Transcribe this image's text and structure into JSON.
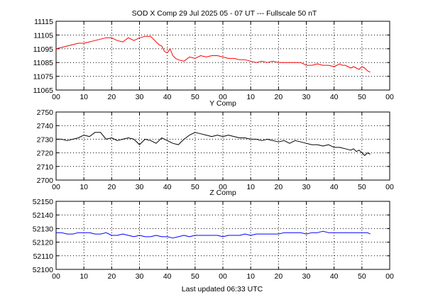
{
  "chart_data": {
    "type": "line",
    "title": "SOD X Comp   29 Jul 2025     05 - 07 UT ---  Fullscale  50 nT",
    "footer": "Last updated  06:33 UTC",
    "x_tick_labels": [
      "00",
      "10",
      "20",
      "30",
      "40",
      "50",
      "00",
      "10",
      "20",
      "30",
      "40",
      "50",
      "00"
    ],
    "x_range_minutes": [
      0,
      120
    ],
    "grid": "dotted",
    "panels": [
      {
        "title": "",
        "label": "",
        "color": "#ff0000",
        "ylim": [
          11065,
          11115
        ],
        "y_ticks": [
          11065,
          11075,
          11085,
          11095,
          11105,
          11115
        ],
        "x": [
          0,
          2,
          4,
          6,
          8,
          10,
          12,
          14,
          16,
          18,
          20,
          22,
          24,
          26,
          28,
          30,
          32,
          34,
          36,
          37,
          38,
          39,
          40,
          41,
          42,
          43,
          44,
          46,
          48,
          50,
          52,
          54,
          56,
          58,
          60,
          62,
          64,
          66,
          68,
          70,
          72,
          74,
          76,
          78,
          80,
          82,
          84,
          86,
          88,
          90,
          92,
          94,
          96,
          98,
          100,
          102,
          103,
          104,
          105,
          106,
          107,
          108,
          109,
          110,
          111,
          112,
          113
        ],
        "y": [
          11095,
          11096,
          11097,
          11098,
          11099,
          11099,
          11100,
          11101,
          11102,
          11103,
          11103,
          11101,
          11100,
          11103,
          11101,
          11103,
          11104,
          11104,
          11100,
          11098,
          11097,
          11093,
          11092,
          11095,
          11090,
          11088,
          11087,
          11086,
          11089,
          11088,
          11090,
          11089,
          11090,
          11090,
          11089,
          11088,
          11088,
          11087,
          11087,
          11086,
          11085,
          11086,
          11085,
          11086,
          11085,
          11085,
          11085,
          11085,
          11085,
          11083,
          11083,
          11084,
          11083,
          11083,
          11082,
          11084,
          11083,
          11083,
          11082,
          11081,
          11082,
          11081,
          11080,
          11082,
          11081,
          11079,
          11078
        ]
      },
      {
        "title": "Y Comp",
        "label": "Y Comp",
        "color": "#000000",
        "ylim": [
          2700,
          2750
        ],
        "y_ticks": [
          2700,
          2710,
          2720,
          2730,
          2740,
          2750
        ],
        "x": [
          0,
          2,
          4,
          6,
          8,
          10,
          12,
          14,
          16,
          18,
          20,
          22,
          24,
          26,
          28,
          30,
          32,
          34,
          36,
          38,
          40,
          42,
          44,
          46,
          48,
          50,
          52,
          54,
          56,
          58,
          60,
          62,
          64,
          66,
          68,
          70,
          72,
          74,
          76,
          78,
          80,
          82,
          84,
          86,
          88,
          90,
          92,
          94,
          96,
          98,
          100,
          102,
          104,
          106,
          107,
          108,
          109,
          110,
          111,
          112,
          113
        ],
        "y": [
          2730,
          2730,
          2729,
          2730,
          2731,
          2733,
          2732,
          2735,
          2735,
          2730,
          2731,
          2729,
          2730,
          2731,
          2730,
          2726,
          2730,
          2729,
          2727,
          2731,
          2729,
          2727,
          2726,
          2730,
          2733,
          2735,
          2734,
          2733,
          2732,
          2733,
          2732,
          2733,
          2732,
          2731,
          2731,
          2730,
          2730,
          2729,
          2730,
          2729,
          2728,
          2729,
          2727,
          2729,
          2728,
          2727,
          2726,
          2726,
          2725,
          2726,
          2724,
          2724,
          2723,
          2722,
          2723,
          2721,
          2722,
          2720,
          2718,
          2720,
          2719
        ]
      },
      {
        "title": "Z Comp",
        "label": "Z Comp",
        "color": "#0000ff",
        "ylim": [
          52100,
          52150
        ],
        "y_ticks": [
          52100,
          52110,
          52120,
          52130,
          52140,
          52150
        ],
        "x": [
          0,
          2,
          4,
          6,
          8,
          10,
          12,
          14,
          16,
          18,
          20,
          22,
          24,
          26,
          28,
          30,
          32,
          34,
          36,
          38,
          40,
          42,
          44,
          46,
          48,
          50,
          52,
          54,
          56,
          58,
          60,
          62,
          64,
          66,
          68,
          70,
          72,
          74,
          76,
          78,
          80,
          82,
          84,
          86,
          88,
          90,
          92,
          94,
          96,
          98,
          100,
          102,
          104,
          106,
          108,
          110,
          112,
          113
        ],
        "y": [
          52127,
          52127,
          52126,
          52126,
          52127,
          52127,
          52127,
          52126,
          52126,
          52127,
          52125,
          52125,
          52126,
          52125,
          52124,
          52125,
          52124,
          52124,
          52125,
          52124,
          52124,
          52123,
          52124,
          52125,
          52124,
          52125,
          52125,
          52125,
          52125,
          52125,
          52124,
          52125,
          52125,
          52125,
          52126,
          52125,
          52126,
          52126,
          52126,
          52126,
          52126,
          52127,
          52127,
          52127,
          52127,
          52126,
          52127,
          52127,
          52128,
          52127,
          52127,
          52127,
          52127,
          52127,
          52127,
          52127,
          52127,
          52126
        ]
      }
    ]
  }
}
